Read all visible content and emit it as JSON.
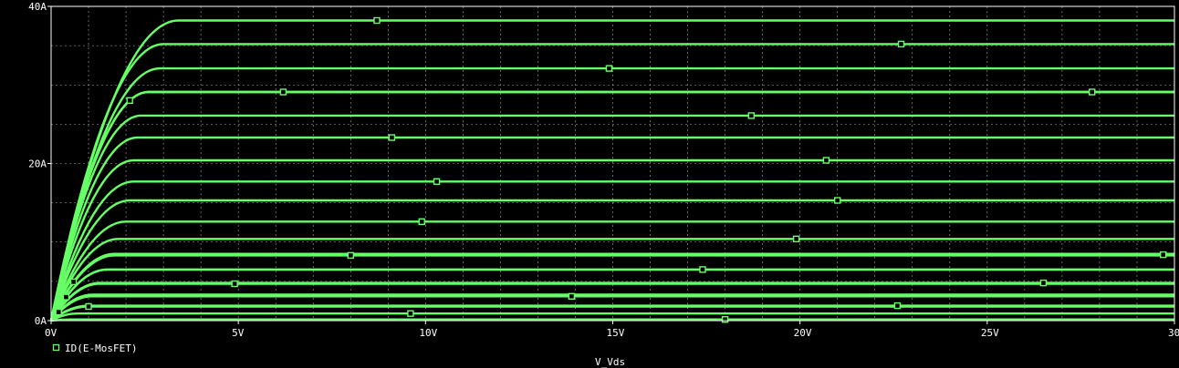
{
  "chart_data": {
    "type": "line",
    "xlabel": "V_Vds",
    "xlim": [
      0,
      30
    ],
    "ylim": [
      0,
      40
    ],
    "x_ticks": [
      {
        "value": 0,
        "label": "0V"
      },
      {
        "value": 5,
        "label": "5V"
      },
      {
        "value": 10,
        "label": "10V"
      },
      {
        "value": 15,
        "label": "15V"
      },
      {
        "value": 20,
        "label": "20V"
      },
      {
        "value": 25,
        "label": "25V"
      },
      {
        "value": 30,
        "label": "30V"
      }
    ],
    "y_ticks": [
      {
        "value": 0,
        "label": "0A"
      },
      {
        "value": 20,
        "label": "20A"
      },
      {
        "value": 40,
        "label": "40A"
      }
    ],
    "grid": true,
    "legend": {
      "label": "ID(E-MosFET)",
      "position": "bottom-left"
    },
    "colors": {
      "background": "#000000",
      "trace": "#66ff66",
      "grid": "#d8d8d8",
      "axis": "#ffffff",
      "text": "#ffffff"
    },
    "curves": [
      {
        "saturation_current": 0.15,
        "vsat": 0.6,
        "marker_vds": 18.0
      },
      {
        "saturation_current": 0.9,
        "vsat": 0.7,
        "marker_vds": 9.6
      },
      {
        "saturation_current": 1.8,
        "vsat": 1.0,
        "marker_vds": 1.0
      },
      {
        "saturation_current": 1.9,
        "vsat": 1.0,
        "marker_vds": 22.6
      },
      {
        "saturation_current": 3.1,
        "vsat": 1.1,
        "marker_vds": 13.9
      },
      {
        "saturation_current": 3.3,
        "vsat": 1.1,
        "marker_vds": 0.2
      },
      {
        "saturation_current": 4.7,
        "vsat": 1.3,
        "marker_vds": 4.9
      },
      {
        "saturation_current": 4.8,
        "vsat": 1.3,
        "marker_vds": 26.5
      },
      {
        "saturation_current": 6.5,
        "vsat": 1.5,
        "marker_vds": 17.4
      },
      {
        "saturation_current": 6.5,
        "vsat": 1.5,
        "marker_vds": 0.4
      },
      {
        "saturation_current": 8.3,
        "vsat": 1.7,
        "marker_vds": 8.0
      },
      {
        "saturation_current": 8.4,
        "vsat": 1.7,
        "marker_vds": 29.7
      },
      {
        "saturation_current": 8.5,
        "vsat": 1.7,
        "marker_vds": 0.6
      },
      {
        "saturation_current": 10.4,
        "vsat": 1.8,
        "marker_vds": 19.9
      },
      {
        "saturation_current": 12.6,
        "vsat": 2.0,
        "marker_vds": 9.9
      },
      {
        "saturation_current": 15.3,
        "vsat": 2.1,
        "marker_vds": 21.0
      },
      {
        "saturation_current": 17.7,
        "vsat": 2.2,
        "marker_vds": 10.3
      },
      {
        "saturation_current": 20.4,
        "vsat": 2.2,
        "marker_vds": 20.7
      },
      {
        "saturation_current": 23.3,
        "vsat": 2.3,
        "marker_vds": 9.1
      },
      {
        "saturation_current": 26.1,
        "vsat": 2.4,
        "marker_vds": 18.7
      },
      {
        "saturation_current": 29.1,
        "vsat": 2.6,
        "marker_vds": 6.2
      },
      {
        "saturation_current": 29.1,
        "vsat": 2.6,
        "marker_vds": 27.8
      },
      {
        "saturation_current": 29.1,
        "vsat": 2.6,
        "marker_vds": 2.1
      },
      {
        "saturation_current": 32.1,
        "vsat": 2.9,
        "marker_vds": 14.9
      },
      {
        "saturation_current": 35.2,
        "vsat": 3.0,
        "marker_vds": 22.7
      },
      {
        "saturation_current": 38.2,
        "vsat": 3.4,
        "marker_vds": 8.7
      }
    ]
  }
}
